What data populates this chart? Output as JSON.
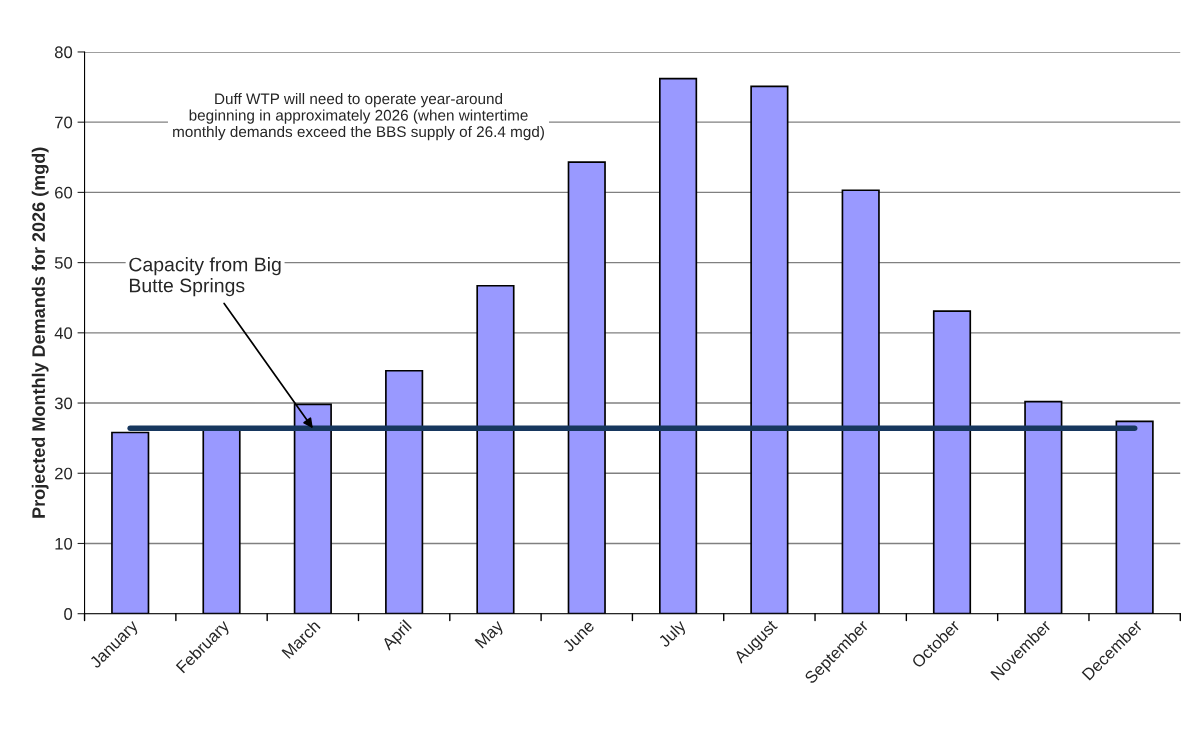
{
  "chart_data": {
    "type": "bar",
    "categories": [
      "January",
      "February",
      "March",
      "April",
      "May",
      "June",
      "July",
      "August",
      "September",
      "October",
      "November",
      "December"
    ],
    "series": [
      {
        "color": "#9999ff",
        "values": [
          25.8,
          26.6,
          29.8,
          34.6,
          46.7,
          64.3,
          76.2,
          75.1,
          60.3,
          43.1,
          30.2,
          27.4
        ]
      },
      {
        "type": "line",
        "color": "#17375e",
        "values": [
          26.4,
          26.4,
          26.4,
          26.4,
          26.4,
          26.4,
          26.4,
          26.4,
          26.4,
          26.4,
          26.4,
          26.4
        ]
      }
    ],
    "ylabel": "Projected Monthly Demands for 2026 (mgd)",
    "ylim": [
      0,
      80
    ],
    "yticks": [
      0,
      10,
      20,
      30,
      40,
      50,
      60,
      70,
      80
    ],
    "grid": "y",
    "legend": false,
    "annotations": [
      "Duff WTP will need to operate year-around\nbeginning in approximately 2026 (when wintertime\nmonthly demands exceed the BBS supply of 26.4 mgd)",
      {
        "text": "Capacity from Big\nButte Springs",
        "x": "March",
        "y": 26.4
      }
    ]
  }
}
